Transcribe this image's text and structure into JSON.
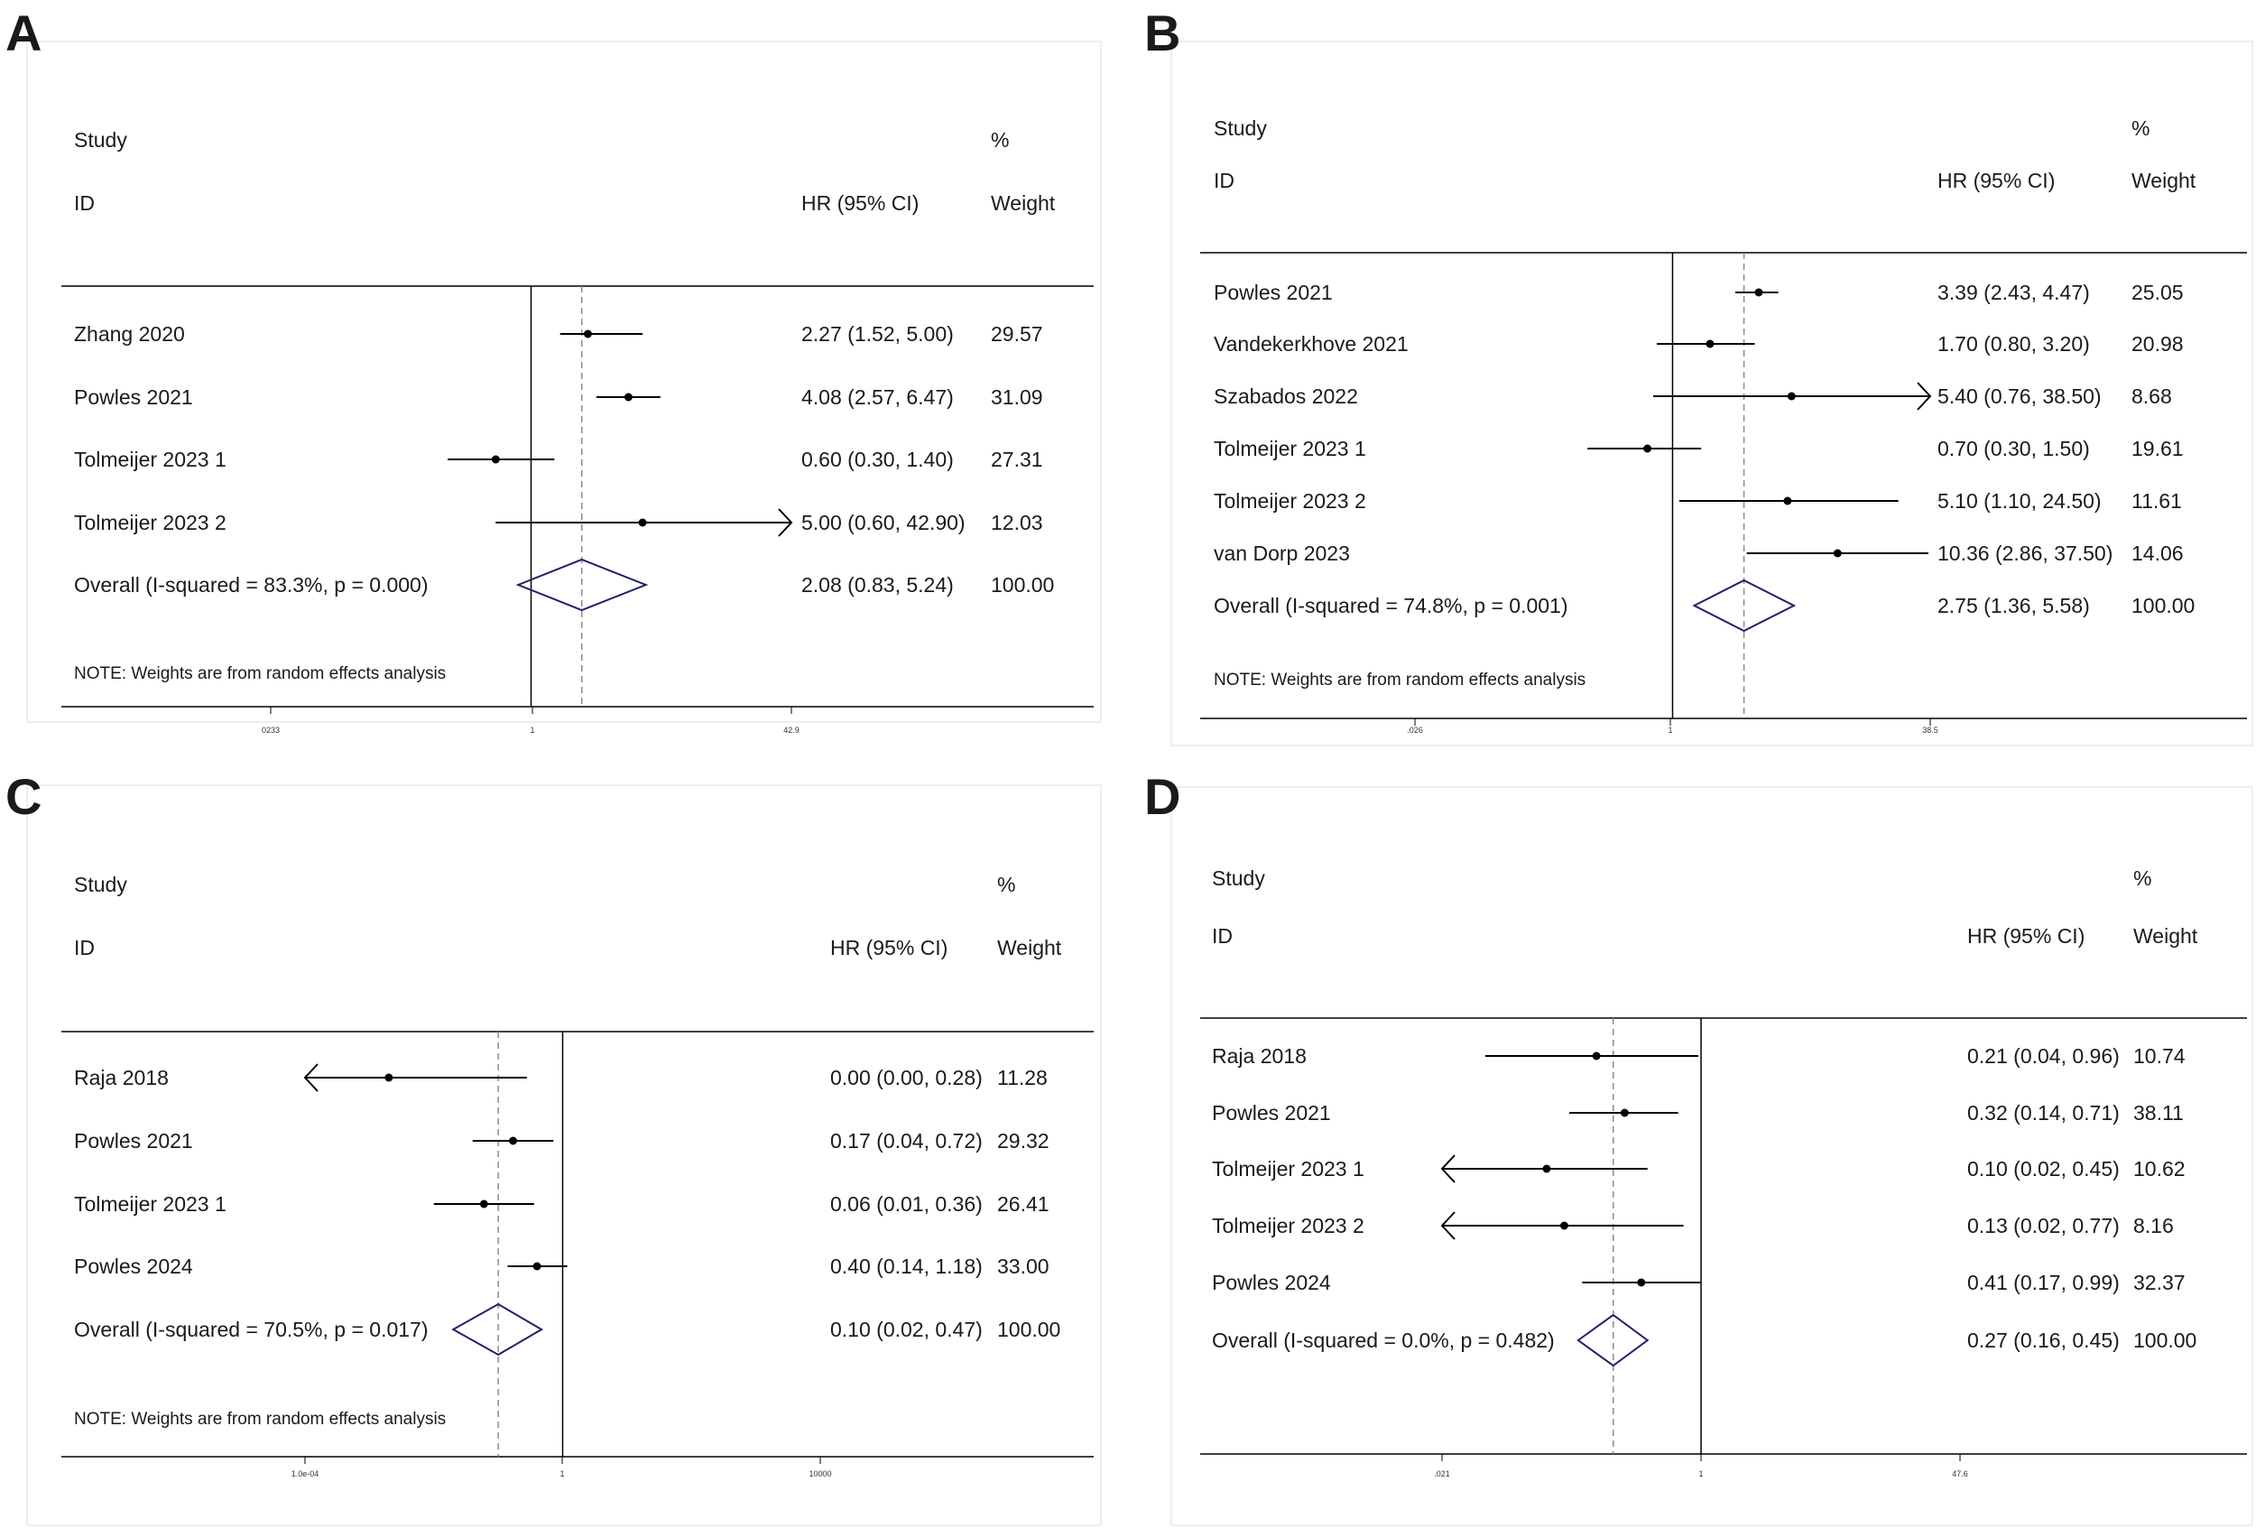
{
  "chart_data": [
    {
      "type": "forest",
      "panel": "A",
      "headers": {
        "study": "Study",
        "id": "ID",
        "effect": "HR (95% CI)",
        "pct": "%",
        "weight": "Weight"
      },
      "scale": "log",
      "xlim": [
        0.0233,
        42.9
      ],
      "ticks": [
        "0233",
        "1",
        "42.9"
      ],
      "null_line": 1,
      "studies": [
        {
          "label": "Zhang 2020",
          "hr": 2.27,
          "lo": 1.52,
          "hi": 5.0,
          "ci_text": "2.27 (1.52, 5.00)",
          "weight": "29.57"
        },
        {
          "label": "Powles 2021",
          "hr": 4.08,
          "lo": 2.57,
          "hi": 6.47,
          "ci_text": "4.08 (2.57, 6.47)",
          "weight": "31.09"
        },
        {
          "label": "Tolmeijer 2023 1",
          "hr": 0.6,
          "lo": 0.3,
          "hi": 1.4,
          "ci_text": "0.60 (0.30, 1.40)",
          "weight": "27.31"
        },
        {
          "label": "Tolmeijer 2023 2",
          "hr": 5.0,
          "lo": 0.6,
          "hi": 42.9,
          "ci_text": "5.00 (0.60, 42.90)",
          "weight": "12.03"
        }
      ],
      "overall": {
        "label": "Overall  (I-squared = 83.3%, p = 0.000)",
        "hr": 2.08,
        "lo": 0.83,
        "hi": 5.24,
        "ci_text": "2.08 (0.83, 5.24)",
        "weight": "100.00"
      },
      "note": "NOTE: Weights are from random effects analysis"
    },
    {
      "type": "forest",
      "panel": "B",
      "headers": {
        "study": "Study",
        "id": "ID",
        "effect": "HR (95% CI)",
        "pct": "%",
        "weight": "Weight"
      },
      "scale": "log",
      "xlim": [
        0.026,
        38.5
      ],
      "ticks": [
        ".026",
        "1",
        "38.5"
      ],
      "null_line": 1,
      "studies": [
        {
          "label": "Powles 2021",
          "hr": 3.39,
          "lo": 2.43,
          "hi": 4.47,
          "ci_text": "3.39 (2.43, 4.47)",
          "weight": "25.05"
        },
        {
          "label": "Vandekerkhove 2021",
          "hr": 1.7,
          "lo": 0.8,
          "hi": 3.2,
          "ci_text": "1.70 (0.80, 3.20)",
          "weight": "20.98"
        },
        {
          "label": "Szabados 2022",
          "hr": 5.4,
          "lo": 0.76,
          "hi": 38.5,
          "ci_text": "5.40 (0.76, 38.50)",
          "weight": "8.68"
        },
        {
          "label": "Tolmeijer 2023 1",
          "hr": 0.7,
          "lo": 0.3,
          "hi": 1.5,
          "ci_text": "0.70 (0.30, 1.50)",
          "weight": "19.61"
        },
        {
          "label": "Tolmeijer 2023 2",
          "hr": 5.1,
          "lo": 1.1,
          "hi": 24.5,
          "ci_text": "5.10 (1.10, 24.50)",
          "weight": "11.61"
        },
        {
          "label": "van Dorp 2023",
          "hr": 10.36,
          "lo": 2.86,
          "hi": 37.5,
          "ci_text": "10.36 (2.86, 37.50)",
          "weight": "14.06"
        }
      ],
      "overall": {
        "label": "Overall  (I-squared = 74.8%, p = 0.001)",
        "hr": 2.75,
        "lo": 1.36,
        "hi": 5.58,
        "ci_text": "2.75 (1.36, 5.58)",
        "weight": "100.00"
      },
      "note": "NOTE: Weights are from random effects analysis"
    },
    {
      "type": "forest",
      "panel": "C",
      "headers": {
        "study": "Study",
        "id": "ID",
        "effect": "HR (95% CI)",
        "pct": "%",
        "weight": "Weight"
      },
      "scale": "log",
      "xlim": [
        0.0001,
        10000
      ],
      "ticks": [
        "1.0e-04",
        "1",
        "10000"
      ],
      "null_line": 1,
      "studies": [
        {
          "label": "Raja 2018",
          "hr": 0.002,
          "lo": 0.0001,
          "hi": 0.28,
          "ci_text": "0.00 (0.00, 0.28)",
          "weight": "11.28"
        },
        {
          "label": "Powles 2021",
          "hr": 0.17,
          "lo": 0.04,
          "hi": 0.72,
          "ci_text": "0.17 (0.04, 0.72)",
          "weight": "29.32"
        },
        {
          "label": "Tolmeijer 2023 1",
          "hr": 0.06,
          "lo": 0.01,
          "hi": 0.36,
          "ci_text": "0.06 (0.01, 0.36)",
          "weight": "26.41"
        },
        {
          "label": "Powles 2024",
          "hr": 0.4,
          "lo": 0.14,
          "hi": 1.18,
          "ci_text": "0.40 (0.14, 1.18)",
          "weight": "33.00"
        }
      ],
      "overall": {
        "label": "Overall  (I-squared = 70.5%, p = 0.017)",
        "hr": 0.1,
        "lo": 0.02,
        "hi": 0.47,
        "ci_text": "0.10 (0.02, 0.47)",
        "weight": "100.00"
      },
      "note": "NOTE: Weights are from random effects analysis"
    },
    {
      "type": "forest",
      "panel": "D",
      "headers": {
        "study": "Study",
        "id": "ID",
        "effect": "HR (95% CI)",
        "pct": "%",
        "weight": "Weight"
      },
      "scale": "log",
      "xlim": [
        0.021,
        47.6
      ],
      "ticks": [
        ".021",
        "1",
        "47.6"
      ],
      "null_line": 1,
      "studies": [
        {
          "label": "Raja 2018",
          "hr": 0.21,
          "lo": 0.04,
          "hi": 0.96,
          "ci_text": "0.21 (0.04, 0.96)",
          "weight": "10.74"
        },
        {
          "label": "Powles 2021",
          "hr": 0.32,
          "lo": 0.14,
          "hi": 0.71,
          "ci_text": "0.32 (0.14, 0.71)",
          "weight": "38.11"
        },
        {
          "label": "Tolmeijer 2023 1",
          "hr": 0.1,
          "lo": 0.02,
          "hi": 0.45,
          "ci_text": "0.10 (0.02, 0.45)",
          "weight": "10.62"
        },
        {
          "label": "Tolmeijer 2023 2",
          "hr": 0.13,
          "lo": 0.02,
          "hi": 0.77,
          "ci_text": "0.13 (0.02, 0.77)",
          "weight": "8.16"
        },
        {
          "label": "Powles 2024",
          "hr": 0.41,
          "lo": 0.17,
          "hi": 0.99,
          "ci_text": "0.41 (0.17, 0.99)",
          "weight": "32.37"
        }
      ],
      "overall": {
        "label": "Overall  (I-squared = 0.0%, p = 0.482)",
        "hr": 0.27,
        "lo": 0.16,
        "hi": 0.45,
        "ci_text": "0.27 (0.16, 0.45)",
        "weight": "100.00"
      },
      "note": ""
    }
  ],
  "colors": {
    "diamond": "#1f1f6e",
    "line": "#000000",
    "dashed": "#8a8a8a"
  }
}
